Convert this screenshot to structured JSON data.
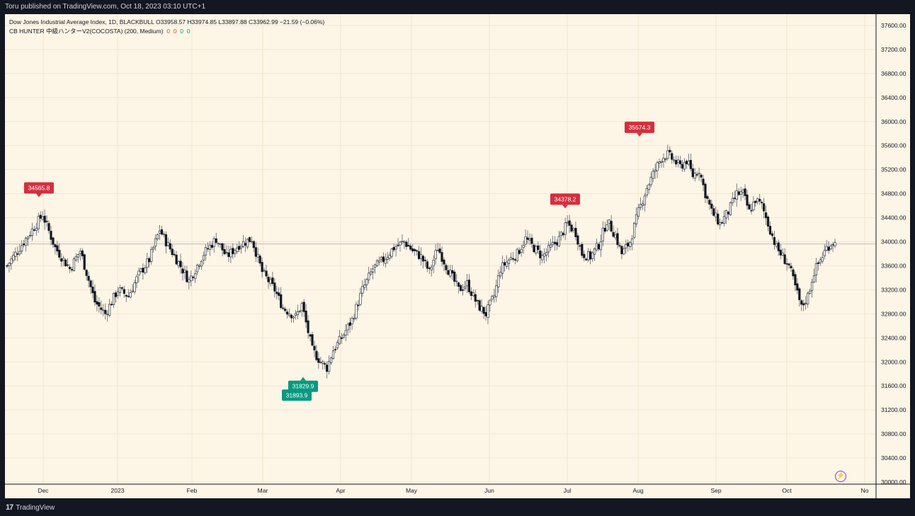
{
  "header": {
    "published_text": "Toru published on TradingView.com, Oct 18, 2023 03:10 UTC+1"
  },
  "legend": {
    "symbol_line": "Dow Jones Industrial Average Index, 1D, BLACKBULL",
    "ohlc": {
      "open": "O33958.57",
      "high": "H33974.85",
      "low": "L33897.88",
      "close": "C33962.99",
      "change": "−21.59 (−0.06%)"
    },
    "indicator_name": "CB HUNTER 中級ハンターV2(COCOSTA) (200, Medium)",
    "indicator_values": [
      "0",
      "0",
      "0",
      "0"
    ]
  },
  "footer": {
    "brand": "TradingView",
    "logo_icon": "tradingview-logo-icon"
  },
  "colors": {
    "background": "#fdf5e6",
    "frame": "#131722",
    "bull_body": "#ffffff",
    "bear_body": "#131722",
    "wick": "#5d606b",
    "grid": "#f1e6cf",
    "price_line": "#b2b5be",
    "top_label": "#d32f3e",
    "bottom_label": "#089981",
    "alert_icon": "#7b3fe4"
  },
  "chart_data": {
    "type": "candlestick",
    "title": "Dow Jones Industrial Average Index, 1D, BLACKBULL",
    "y_axis": {
      "position": "right",
      "range": [
        30000,
        37800
      ],
      "ticks": [
        "37600.00",
        "37200.00",
        "36800.00",
        "36400.00",
        "36000.00",
        "35600.00",
        "35200.00",
        "34800.00",
        "34400.00",
        "34000.00",
        "33600.00",
        "33200.00",
        "32800.00",
        "32400.00",
        "32000.00",
        "31600.00",
        "31200.00",
        "30800.00",
        "30400.00",
        "30000.00"
      ]
    },
    "x_axis": {
      "ticks": [
        "Dec",
        "2023",
        "Feb",
        "Mar",
        "Apr",
        "May",
        "Jun",
        "Jul",
        "Aug",
        "Sep",
        "Oct",
        "No"
      ]
    },
    "grid": true,
    "current_price": 33962.99,
    "annotations": [
      {
        "label": "34565.8",
        "kind": "top",
        "price": 34565.8
      },
      {
        "label": "31893.9",
        "kind": "bottom",
        "price": 31893.9
      },
      {
        "label": "31829.9",
        "kind": "bottom",
        "price": 31829.9
      },
      {
        "label": "34378.2",
        "kind": "top",
        "price": 34378.2
      },
      {
        "label": "35574.3",
        "kind": "top",
        "price": 35574.3
      }
    ],
    "close_path": [
      [
        0,
        33600
      ],
      [
        5,
        33850
      ],
      [
        12,
        34200
      ],
      [
        17,
        34450
      ],
      [
        23,
        33900
      ],
      [
        30,
        33550
      ],
      [
        35,
        33850
      ],
      [
        42,
        33000
      ],
      [
        47,
        32800
      ],
      [
        53,
        33200
      ],
      [
        58,
        33100
      ],
      [
        63,
        33450
      ],
      [
        68,
        33700
      ],
      [
        73,
        34200
      ],
      [
        76,
        34000
      ],
      [
        82,
        33650
      ],
      [
        87,
        33350
      ],
      [
        94,
        33800
      ],
      [
        100,
        34050
      ],
      [
        105,
        33750
      ],
      [
        111,
        33950
      ],
      [
        117,
        34050
      ],
      [
        122,
        33500
      ],
      [
        128,
        33200
      ],
      [
        132,
        32900
      ],
      [
        138,
        32750
      ],
      [
        141,
        32950
      ],
      [
        146,
        32200
      ],
      [
        150,
        32000
      ],
      [
        153,
        31900
      ],
      [
        156,
        32200
      ],
      [
        160,
        32400
      ],
      [
        165,
        32700
      ],
      [
        170,
        33200
      ],
      [
        175,
        33550
      ],
      [
        180,
        33700
      ],
      [
        185,
        33900
      ],
      [
        190,
        34000
      ],
      [
        194,
        33850
      ],
      [
        198,
        33750
      ],
      [
        202,
        33500
      ],
      [
        206,
        33900
      ],
      [
        210,
        33600
      ],
      [
        213,
        33400
      ],
      [
        216,
        33200
      ],
      [
        220,
        33300
      ],
      [
        225,
        32950
      ],
      [
        229,
        32800
      ],
      [
        233,
        33100
      ],
      [
        236,
        33550
      ],
      [
        240,
        33700
      ],
      [
        244,
        33800
      ],
      [
        248,
        34050
      ],
      [
        252,
        33900
      ],
      [
        256,
        33750
      ],
      [
        260,
        33900
      ],
      [
        264,
        34050
      ],
      [
        268,
        34300
      ],
      [
        272,
        34150
      ],
      [
        275,
        33800
      ],
      [
        279,
        33750
      ],
      [
        283,
        33950
      ],
      [
        287,
        34350
      ],
      [
        291,
        34100
      ],
      [
        294,
        33800
      ],
      [
        298,
        34000
      ],
      [
        302,
        34500
      ],
      [
        306,
        34900
      ],
      [
        310,
        35200
      ],
      [
        313,
        35400
      ],
      [
        316,
        35450
      ],
      [
        319,
        35350
      ],
      [
        322,
        35250
      ],
      [
        325,
        35350
      ],
      [
        328,
        35100
      ],
      [
        331,
        35200
      ],
      [
        334,
        34800
      ],
      [
        337,
        34500
      ],
      [
        341,
        34300
      ],
      [
        345,
        34500
      ],
      [
        349,
        34800
      ],
      [
        352,
        34800
      ],
      [
        355,
        34500
      ],
      [
        358,
        34700
      ],
      [
        361,
        34600
      ],
      [
        364,
        34300
      ],
      [
        368,
        33900
      ],
      [
        371,
        33750
      ],
      [
        374,
        33600
      ],
      [
        377,
        33250
      ],
      [
        380,
        32900
      ],
      [
        383,
        33100
      ],
      [
        386,
        33500
      ],
      [
        389,
        33700
      ],
      [
        392,
        33900
      ],
      [
        395,
        34000
      ],
      [
        396,
        33963
      ]
    ]
  }
}
